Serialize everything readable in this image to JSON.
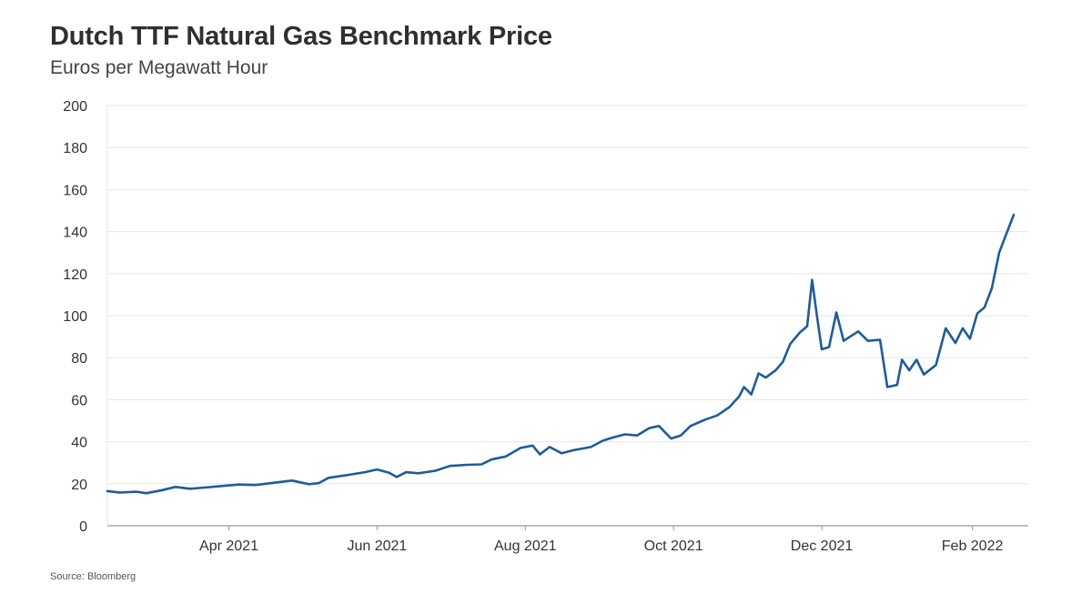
{
  "title": "Dutch TTF Natural Gas Benchmark Price",
  "subtitle": "Euros per Megawatt Hour",
  "source": "Source: Bloomberg",
  "colors": {
    "line": "#1f5c99",
    "grid": "#e6e6e6",
    "axis": "#999999"
  },
  "chart_data": {
    "type": "line",
    "xlabel": "",
    "ylabel": "",
    "ylim": [
      0,
      200
    ],
    "yticks": [
      0,
      20,
      40,
      60,
      80,
      100,
      120,
      140,
      160,
      180,
      200
    ],
    "xlim": [
      "2021-02-10",
      "2022-02-24"
    ],
    "xticks": [
      {
        "date": "2021-04-01",
        "label": "Apr 2021"
      },
      {
        "date": "2021-06-01",
        "label": "Jun 2021"
      },
      {
        "date": "2021-08-01",
        "label": "Aug 2021"
      },
      {
        "date": "2021-10-01",
        "label": "Oct 2021"
      },
      {
        "date": "2021-12-01",
        "label": "Dec 2021"
      },
      {
        "date": "2022-02-01",
        "label": "Feb 2022"
      }
    ],
    "grid": true,
    "series": [
      {
        "points": [
          [
            "2021-02-10",
            16.5
          ],
          [
            "2021-02-15",
            15.8
          ],
          [
            "2021-02-22",
            16.2
          ],
          [
            "2021-02-26",
            15.5
          ],
          [
            "2021-03-04",
            16.8
          ],
          [
            "2021-03-10",
            18.5
          ],
          [
            "2021-03-16",
            17.6
          ],
          [
            "2021-03-22",
            18.2
          ],
          [
            "2021-03-28",
            18.8
          ],
          [
            "2021-04-05",
            19.6
          ],
          [
            "2021-04-12",
            19.4
          ],
          [
            "2021-04-20",
            20.5
          ],
          [
            "2021-04-27",
            21.5
          ],
          [
            "2021-05-04",
            19.8
          ],
          [
            "2021-05-08",
            20.3
          ],
          [
            "2021-05-12",
            22.8
          ],
          [
            "2021-05-20",
            24.2
          ],
          [
            "2021-05-27",
            25.5
          ],
          [
            "2021-06-01",
            26.8
          ],
          [
            "2021-06-06",
            25.2
          ],
          [
            "2021-06-09",
            23.2
          ],
          [
            "2021-06-13",
            25.5
          ],
          [
            "2021-06-18",
            25.0
          ],
          [
            "2021-06-25",
            26.2
          ],
          [
            "2021-07-01",
            28.5
          ],
          [
            "2021-07-08",
            29.0
          ],
          [
            "2021-07-14",
            29.2
          ],
          [
            "2021-07-18",
            31.5
          ],
          [
            "2021-07-24",
            33.0
          ],
          [
            "2021-07-30",
            37.0
          ],
          [
            "2021-08-04",
            38.2
          ],
          [
            "2021-08-07",
            34.0
          ],
          [
            "2021-08-11",
            37.5
          ],
          [
            "2021-08-16",
            34.5
          ],
          [
            "2021-08-21",
            36.0
          ],
          [
            "2021-08-28",
            37.5
          ],
          [
            "2021-09-02",
            40.5
          ],
          [
            "2021-09-06",
            42.0
          ],
          [
            "2021-09-11",
            43.5
          ],
          [
            "2021-09-16",
            43.0
          ],
          [
            "2021-09-21",
            46.5
          ],
          [
            "2021-09-25",
            47.5
          ],
          [
            "2021-09-30",
            41.5
          ],
          [
            "2021-10-04",
            43.0
          ],
          [
            "2021-10-08",
            47.5
          ],
          [
            "2021-10-14",
            50.5
          ],
          [
            "2021-10-19",
            52.5
          ],
          [
            "2021-10-24",
            56.5
          ],
          [
            "2021-10-28",
            61.5
          ],
          [
            "2021-10-30",
            66.0
          ],
          [
            "2021-11-02",
            62.5
          ],
          [
            "2021-11-05",
            72.5
          ],
          [
            "2021-11-08",
            70.5
          ],
          [
            "2021-11-12",
            74.0
          ],
          [
            "2021-11-15",
            78.0
          ],
          [
            "2021-11-18",
            86.5
          ],
          [
            "2021-11-22",
            92.0
          ],
          [
            "2021-11-25",
            95.0
          ],
          [
            "2021-11-27",
            117.0
          ],
          [
            "2021-11-29",
            100.0
          ],
          [
            "2021-12-01",
            84.0
          ],
          [
            "2021-12-04",
            85.0
          ],
          [
            "2021-12-07",
            101.5
          ],
          [
            "2021-12-10",
            88.0
          ],
          [
            "2021-12-16",
            92.5
          ],
          [
            "2021-12-20",
            88.0
          ],
          [
            "2021-12-25",
            88.5
          ],
          [
            "2021-12-28",
            66.0
          ],
          [
            "2022-01-01",
            67.0
          ],
          [
            "2022-01-03",
            79.0
          ],
          [
            "2022-01-06",
            74.0
          ],
          [
            "2022-01-09",
            79.0
          ],
          [
            "2022-01-12",
            72.0
          ],
          [
            "2022-01-17",
            76.5
          ],
          [
            "2022-01-21",
            94.0
          ],
          [
            "2022-01-25",
            87.0
          ],
          [
            "2022-01-28",
            94.0
          ],
          [
            "2022-01-31",
            89.0
          ],
          [
            "2022-02-03",
            101.0
          ],
          [
            "2022-02-06",
            104.0
          ],
          [
            "2022-02-09",
            113.0
          ],
          [
            "2022-02-12",
            130.0
          ],
          [
            "2022-02-14",
            136.0
          ],
          [
            "2022-02-18",
            148.0
          ]
        ]
      }
    ]
  }
}
